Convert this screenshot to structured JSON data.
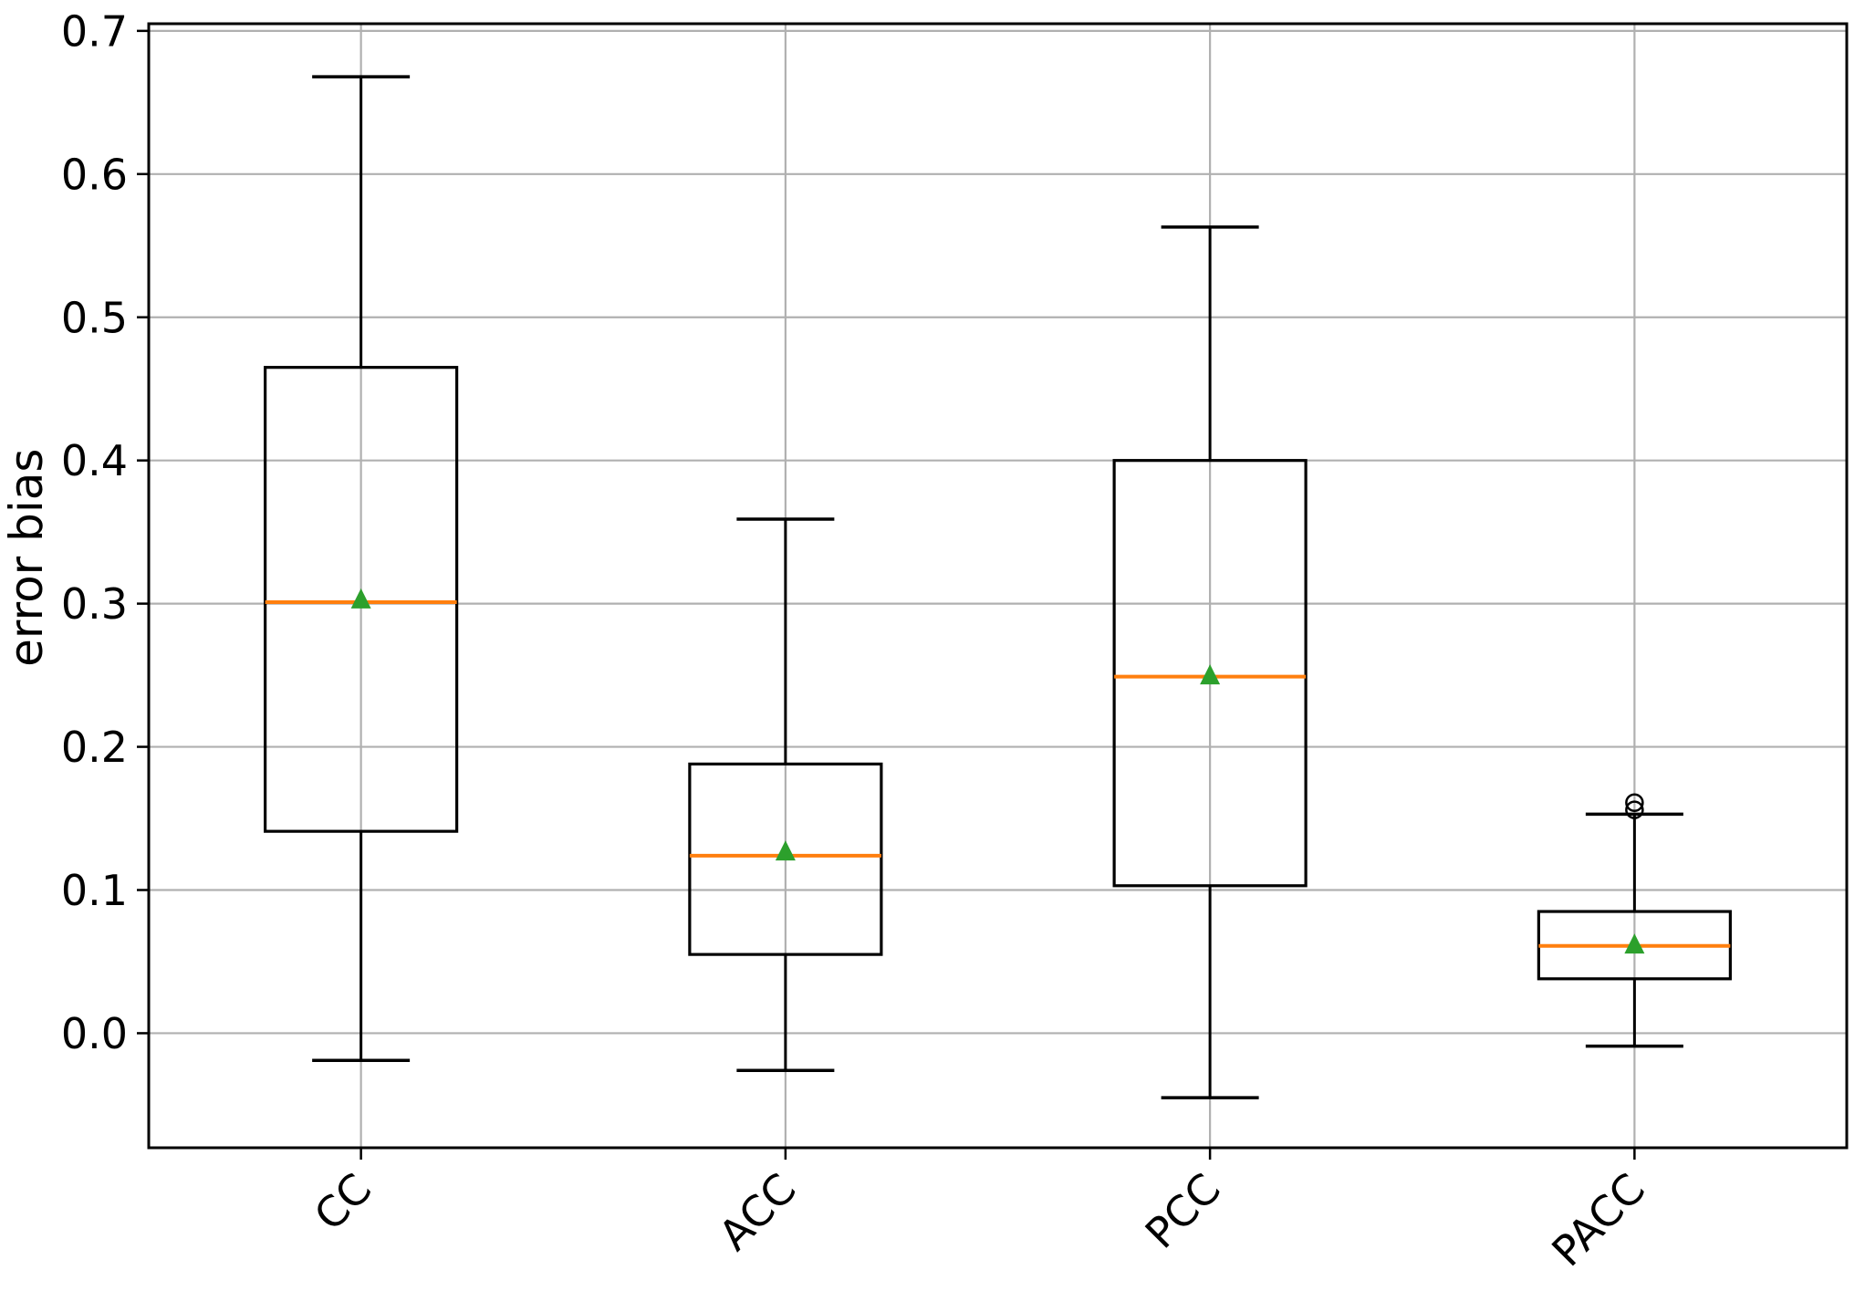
{
  "figure": {
    "background": "#ffffff"
  },
  "axes": {
    "ylabel": "error bias",
    "y_tick_values": [
      0.0,
      0.1,
      0.2,
      0.3,
      0.4,
      0.5,
      0.6,
      0.7
    ],
    "y_tick_labels": [
      "0.0",
      "0.1",
      "0.2",
      "0.3",
      "0.4",
      "0.5",
      "0.6",
      "0.7"
    ],
    "x_tick_labels": [
      "CC",
      "ACC",
      "PCC",
      "PACC"
    ],
    "xtick_rotation": 45,
    "grid": true
  },
  "chart_data": {
    "type": "boxplot",
    "title": "",
    "xlabel": "",
    "ylabel": "error bias",
    "ylim": [
      -0.08,
      0.705
    ],
    "grid": true,
    "categories": [
      "CC",
      "ACC",
      "PCC",
      "PACC"
    ],
    "series": [
      {
        "label": "CC",
        "whisker_low": -0.019,
        "q1": 0.141,
        "median": 0.301,
        "mean": 0.303,
        "q3": 0.465,
        "whisker_high": 0.668,
        "outliers": []
      },
      {
        "label": "ACC",
        "whisker_low": -0.026,
        "q1": 0.055,
        "median": 0.124,
        "mean": 0.127,
        "q3": 0.188,
        "whisker_high": 0.359,
        "outliers": []
      },
      {
        "label": "PCC",
        "whisker_low": -0.045,
        "q1": 0.103,
        "median": 0.249,
        "mean": 0.25,
        "q3": 0.4,
        "whisker_high": 0.563,
        "outliers": []
      },
      {
        "label": "PACC",
        "whisker_low": -0.009,
        "q1": 0.038,
        "median": 0.061,
        "mean": 0.062,
        "q3": 0.085,
        "whisker_high": 0.153,
        "outliers": [
          0.156,
          0.161
        ]
      }
    ],
    "style": {
      "box_color": "#000000",
      "median_color": "#ff7f0e",
      "mean_marker_color": "#2ca02c",
      "mean_marker": "triangle-up",
      "flier_marker": "circle-open",
      "grid_color": "#b0b0b0",
      "spine_color": "#000000",
      "background": "#ffffff"
    }
  }
}
